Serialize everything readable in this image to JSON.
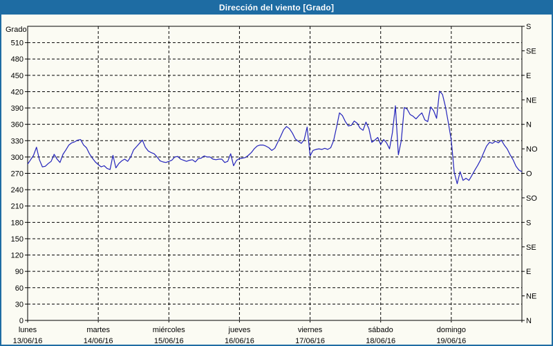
{
  "window": {
    "title": "Dirección del viento [Grado]"
  },
  "colors": {
    "frame_border": "#1e6ca3",
    "titlebar_bg": "#1e6ca3",
    "title_text": "#ffffff",
    "background": "#fbfbf3",
    "grid": "#000000",
    "axis": "#000000",
    "tick_text": "#000000",
    "series_line": "#2222bb"
  },
  "chart_data": {
    "type": "line",
    "title": "Dirección del viento [Grado]",
    "ylabel": "Grado",
    "ylim": [
      0,
      540
    ],
    "grid": "dashed",
    "legend": "none",
    "y_ticks_left": [
      0,
      30,
      60,
      90,
      120,
      150,
      180,
      210,
      240,
      270,
      300,
      330,
      360,
      390,
      420,
      450,
      480,
      510
    ],
    "y_ticks_right": [
      {
        "value": 540,
        "label": "S"
      },
      {
        "value": 495,
        "label": "SE"
      },
      {
        "value": 450,
        "label": "E"
      },
      {
        "value": 405,
        "label": "NE"
      },
      {
        "value": 360,
        "label": "N"
      },
      {
        "value": 315,
        "label": "NO"
      },
      {
        "value": 270,
        "label": "O"
      },
      {
        "value": 225,
        "label": "SO"
      },
      {
        "value": 180,
        "label": "S"
      },
      {
        "value": 135,
        "label": "SE"
      },
      {
        "value": 90,
        "label": "E"
      },
      {
        "value": 45,
        "label": "NE"
      },
      {
        "value": 0,
        "label": "N"
      }
    ],
    "x_days": [
      {
        "day": "lunes",
        "date": "13/06/16"
      },
      {
        "day": "martes",
        "date": "14/06/16"
      },
      {
        "day": "miércoles",
        "date": "15/06/16"
      },
      {
        "day": "jueves",
        "date": "16/06/16"
      },
      {
        "day": "viernes",
        "date": "17/06/16"
      },
      {
        "day": "sábado",
        "date": "18/06/16"
      },
      {
        "day": "domingo",
        "date": "19/06/16"
      }
    ],
    "points_per_day": 24,
    "series": [
      {
        "name": "Dirección del viento (Grado)",
        "values": [
          287,
          295,
          303,
          318,
          295,
          282,
          283,
          288,
          292,
          305,
          296,
          290,
          305,
          313,
          322,
          326,
          328,
          331,
          332,
          322,
          317,
          306,
          298,
          291,
          286,
          282,
          284,
          279,
          277,
          303,
          280,
          288,
          293,
          296,
          292,
          300,
          313,
          319,
          325,
          331,
          318,
          311,
          308,
          306,
          300,
          293,
          291,
          290,
          292,
          294,
          300,
          301,
          296,
          294,
          292,
          294,
          295,
          291,
          297,
          298,
          302,
          300,
          300,
          296,
          295,
          296,
          296,
          290,
          292,
          306,
          284,
          294,
          297,
          298,
          299,
          303,
          308,
          315,
          320,
          322,
          322,
          320,
          317,
          312,
          316,
          327,
          338,
          350,
          356,
          352,
          344,
          333,
          329,
          325,
          332,
          355,
          302,
          312,
          314,
          315,
          314,
          316,
          314,
          317,
          330,
          355,
          381,
          376,
          365,
          357,
          358,
          366,
          362,
          353,
          349,
          364,
          352,
          327,
          331,
          336,
          323,
          332,
          326,
          315,
          345,
          394,
          304,
          330,
          391,
          388,
          378,
          375,
          370,
          376,
          381,
          368,
          365,
          392,
          385,
          371,
          421,
          415,
          393,
          363,
          330,
          272,
          251,
          273,
          257,
          261,
          257,
          266,
          276,
          285,
          295,
          308,
          320,
          327,
          325,
          329,
          326,
          331,
          322,
          315,
          304,
          295,
          283,
          276,
          273
        ]
      }
    ]
  }
}
